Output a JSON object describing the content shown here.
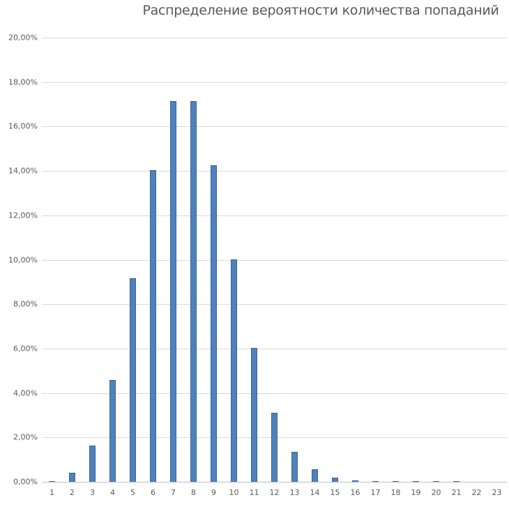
{
  "chart_data": {
    "type": "bar",
    "title": "Распределение вероятности количества попаданий",
    "xlabel": "",
    "ylabel": "",
    "categories": [
      "1",
      "2",
      "3",
      "4",
      "5",
      "6",
      "7",
      "8",
      "9",
      "10",
      "11",
      "12",
      "13",
      "14",
      "15",
      "16",
      "17",
      "18",
      "19",
      "20",
      "21",
      "22",
      "23"
    ],
    "values": [
      0.02,
      0.42,
      1.64,
      4.59,
      9.16,
      14.03,
      17.14,
      17.14,
      14.25,
      10.03,
      6.03,
      3.12,
      1.35,
      0.55,
      0.2,
      0.05,
      0.03,
      0.03,
      0.03,
      0.03,
      0.03,
      0,
      0
    ],
    "value_format": "percent",
    "ylim": [
      0,
      20
    ],
    "yticks": [
      "0,00%",
      "2,00%",
      "4,00%",
      "6,00%",
      "8,00%",
      "10,00%",
      "12,00%",
      "14,00%",
      "16,00%",
      "18,00%",
      "20,00%"
    ],
    "ytick_values": [
      0,
      2,
      4,
      6,
      8,
      10,
      12,
      14,
      16,
      18,
      20
    ],
    "grid": true,
    "legend": null,
    "colors": {
      "bar": "#4f81bd",
      "bar_border": "#3a6595",
      "grid": "#d9d9d9",
      "text": "#595959"
    }
  }
}
